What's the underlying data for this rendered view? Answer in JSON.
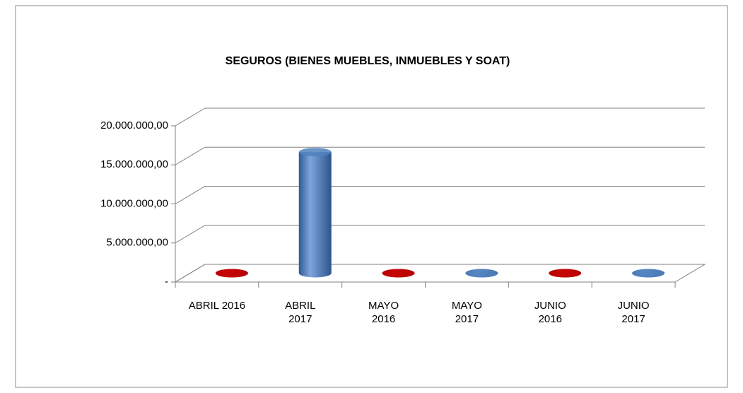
{
  "chart_data": {
    "type": "bar3d",
    "title": "SEGUROS  (BIENES  MUEBLES, INMUEBLES Y SOAT)",
    "categories": [
      "ABRIL 2016",
      "ABRIL\n2017",
      "MAYO\n2016",
      "MAYO\n2017",
      "JUNIO\n2016",
      "JUNIO\n2017"
    ],
    "values": [
      0,
      15500000,
      0,
      0,
      0,
      0
    ],
    "colors": [
      "#c00000",
      "#4f81bd",
      "#c00000",
      "#4f81bd",
      "#c00000",
      "#4f81bd"
    ],
    "ylim": [
      0,
      20000000
    ],
    "yticks": [
      {
        "value": 0,
        "label": "-"
      },
      {
        "value": 5000000,
        "label": "5.000.000,00"
      },
      {
        "value": 10000000,
        "label": "10.000.000,00"
      },
      {
        "value": 15000000,
        "label": "15.000.000,00"
      },
      {
        "value": 20000000,
        "label": "20.000.000,00"
      }
    ],
    "grid": true
  }
}
